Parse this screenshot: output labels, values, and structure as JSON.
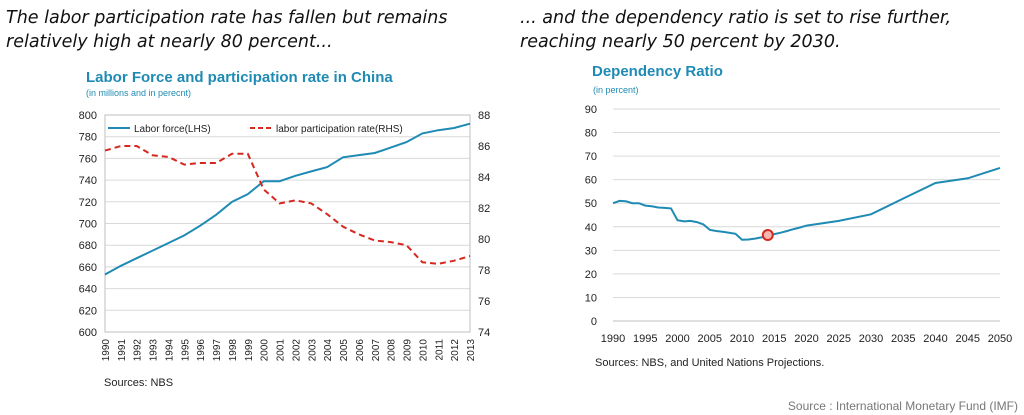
{
  "headline_left": "The labor participation rate has fallen but remains relatively high at nearly 80 percent...",
  "headline_right": "... and the dependency ratio is set to rise further, reaching nearly 50 percent by 2030.",
  "footer": "Source : International Monetary Fund (IMF)",
  "colors": {
    "accent": "#1f8bb4",
    "participation": "#d6281f",
    "marker": "#d6281f"
  },
  "chart_data": [
    {
      "type": "line",
      "title": "Labor Force and participation rate in China",
      "subtitle": "(in millions and in perecnt)",
      "source": "Sources: NBS",
      "x": [
        "1990",
        "1991",
        "1992",
        "1993",
        "1994",
        "1995",
        "1996",
        "1997",
        "1998",
        "1999",
        "2000",
        "2001",
        "2002",
        "2003",
        "2004",
        "2005",
        "2006",
        "2007",
        "2008",
        "2009",
        "2010",
        "2011",
        "2012",
        "2013"
      ],
      "series": [
        {
          "name": "Labor force(LHS)",
          "axis": "left",
          "style": "solid",
          "color": "#1f8bb4",
          "values": [
            653,
            661,
            668,
            675,
            682,
            689,
            698,
            708,
            720,
            727,
            739,
            739,
            744,
            748,
            752,
            761,
            763,
            765,
            770,
            775,
            783,
            786,
            788,
            792
          ]
        },
        {
          "name": "labor participation rate(RHS)",
          "axis": "right",
          "style": "dashed",
          "color": "#d6281f",
          "values": [
            85.7,
            86.0,
            86.0,
            85.4,
            85.3,
            84.8,
            84.9,
            84.9,
            85.5,
            85.5,
            83.2,
            82.3,
            82.5,
            82.3,
            81.6,
            80.8,
            80.3,
            79.9,
            79.8,
            79.6,
            78.5,
            78.4,
            78.6,
            78.9
          ]
        }
      ],
      "y_left": {
        "min": 600,
        "max": 800,
        "ticks": [
          "600",
          "620",
          "640",
          "660",
          "680",
          "700",
          "720",
          "740",
          "760",
          "780",
          "800"
        ]
      },
      "y_right": {
        "min": 74,
        "max": 88,
        "ticks": [
          "74",
          "76",
          "78",
          "80",
          "82",
          "84",
          "86",
          "88"
        ]
      },
      "grid": true,
      "legend": "top"
    },
    {
      "type": "line",
      "title": "Dependency Ratio",
      "subtitle": "(in percent)",
      "source": "Sources: NBS, and United Nations Projections.",
      "x": [
        1990,
        1991,
        1992,
        1993,
        1994,
        1995,
        1996,
        1997,
        1998,
        1999,
        2000,
        2001,
        2002,
        2003,
        2004,
        2005,
        2006,
        2007,
        2008,
        2009,
        2010,
        2011,
        2012,
        2013,
        2014,
        2015,
        2016,
        2017,
        2018,
        2019,
        2020,
        2025,
        2030,
        2035,
        2040,
        2045,
        2050
      ],
      "series": [
        {
          "name": "",
          "values": [
            50,
            51,
            50.8,
            50,
            50,
            49,
            48.7,
            48.2,
            48,
            47.8,
            42.8,
            42.3,
            42.5,
            42,
            41,
            38.7,
            38.2,
            37.9,
            37.5,
            37,
            34.5,
            34.6,
            35,
            35.5,
            36,
            36.9,
            37.5,
            38.2,
            39,
            39.7,
            40.5,
            42.5,
            45.3,
            52,
            58.6,
            60.6,
            65
          ]
        }
      ],
      "highlight": {
        "x": 2014,
        "y": 36.5
      },
      "xlim": [
        1990,
        2050
      ],
      "ylim": [
        0,
        90
      ],
      "x_ticks": [
        "1990",
        "1995",
        "2000",
        "2005",
        "2010",
        "2015",
        "2020",
        "2025",
        "2030",
        "2035",
        "2040",
        "2045",
        "2050"
      ],
      "y_ticks": [
        "0",
        "10",
        "20",
        "30",
        "40",
        "50",
        "60",
        "70",
        "80",
        "90"
      ],
      "grid": true
    }
  ]
}
